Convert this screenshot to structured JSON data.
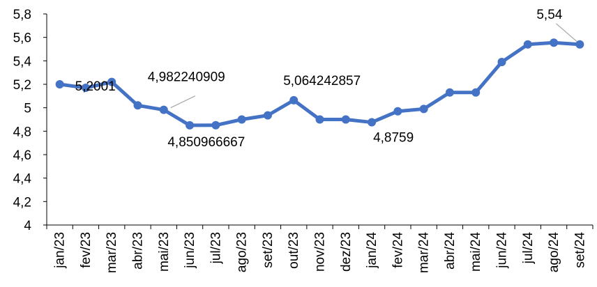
{
  "chart_data": {
    "type": "line",
    "title": "",
    "xlabel": "",
    "ylabel": "",
    "categories": [
      "jan/23",
      "fev/23",
      "mar/23",
      "abr/23",
      "mai/23",
      "jun/23",
      "jul/23",
      "ago/23",
      "set/23",
      "out/23",
      "nov/23",
      "dez/23",
      "jan/24",
      "fev/24",
      "mar/24",
      "abr/24",
      "mai/24",
      "jun/24",
      "jul/24",
      "ago/24",
      "set/24"
    ],
    "series": [
      {
        "color": "#4472c4",
        "values": [
          5.2001,
          5.17,
          5.22,
          5.02,
          4.982240909,
          4.85,
          4.850966667,
          4.9,
          4.935,
          5.064242857,
          4.9,
          4.9,
          4.8759,
          4.97,
          4.99,
          5.13,
          5.13,
          5.39,
          5.54,
          5.555,
          5.54
        ]
      }
    ],
    "ylim": [
      4,
      5.8
    ],
    "yticks": [
      "4",
      "4,2",
      "4,4",
      "4,6",
      "4,8",
      "5",
      "5,2",
      "5,4",
      "5,6",
      "5,8"
    ],
    "grid": false,
    "legend": "none",
    "annotations": [
      {
        "index": 0,
        "text": "5,2001"
      },
      {
        "index": 4,
        "text": "4,982240909"
      },
      {
        "index": 6,
        "text": "4,850966667"
      },
      {
        "index": 9,
        "text": "5,064242857"
      },
      {
        "index": 12,
        "text": "4,8759"
      },
      {
        "index": 20,
        "text": "5,54"
      }
    ]
  }
}
